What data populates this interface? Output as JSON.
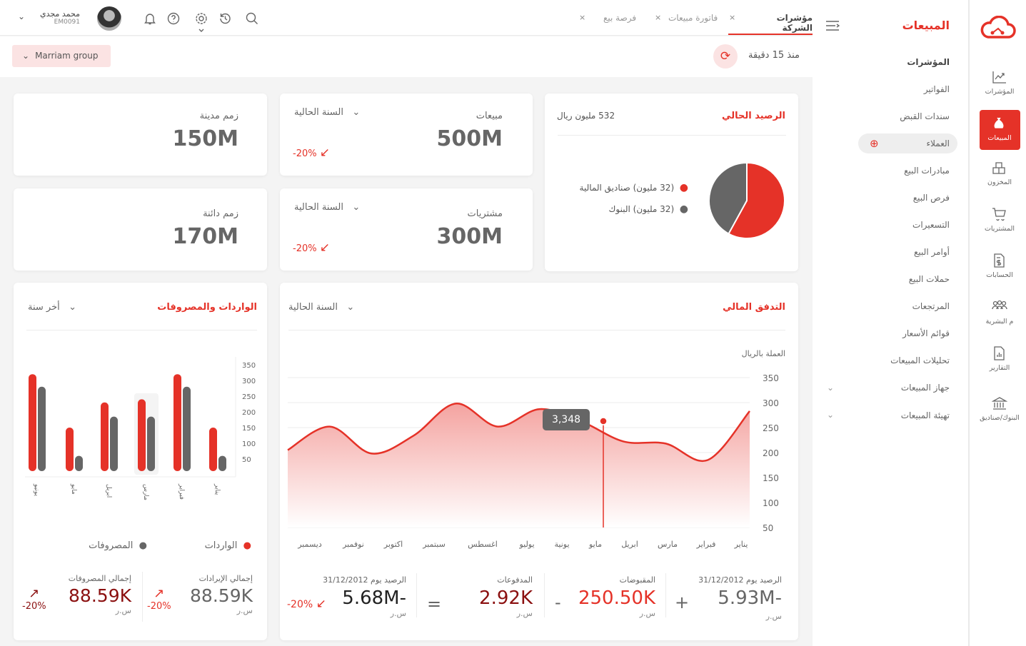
{
  "header": {
    "user_name": "محمد مجدي",
    "user_id": "EM0091",
    "tabs": [
      {
        "label": "مؤشرات الشركة",
        "active": true
      },
      {
        "label": "فاتورة مبيعات"
      },
      {
        "label": "فرصة بيع"
      }
    ],
    "company": "Marriam group",
    "updated": "منذ 15 دقيقة"
  },
  "menu": {
    "title": "المبيعات",
    "items": [
      "المؤشرات",
      "الفواتير",
      "سندات القبض",
      "العملاء",
      "مبادرات البيع",
      "فرص البيع",
      "التسعيرات",
      "أوامر البيع",
      "حملات البيع",
      "المرتجعات",
      "قوائم الأسعار",
      "تحليلات المبيعات",
      "جهاز المبيعات",
      "تهيئة المبيعات"
    ]
  },
  "rail": [
    "المؤشرات",
    "المبيعات",
    "المخزون",
    "المشتريات",
    "الحسابات",
    "م البشرية",
    "التقارير",
    "البنوك/صناديق"
  ],
  "balance": {
    "title": "الرصيد الحالي",
    "total": "532 مليون ريال",
    "legend": [
      "(32 مليون)  صناديق المالية",
      "(32 مليون) البنوك"
    ],
    "slices": [
      58,
      42
    ],
    "colors": [
      "#e53228",
      "#666666"
    ]
  },
  "kpis": {
    "sales": {
      "label": "مبيعات",
      "value": "500M",
      "period": "السنة الحالية",
      "change": "-20%"
    },
    "purchases": {
      "label": "مشتريات",
      "value": "300M",
      "period": "السنة الحالية",
      "change": "-20%"
    },
    "debtors": {
      "label": "زمم مدينة",
      "value": "150M"
    },
    "creditors": {
      "label": "زمم دائنة",
      "value": "170M"
    }
  },
  "cashflow": {
    "title": "التدفق المالي",
    "period": "السنة الحالية",
    "currency_note": "العملة بالريال",
    "tooltip": "3,348",
    "summary": {
      "open_label": "الرصيد يوم 31/12/2012",
      "open": "5.93M-",
      "plus": "+",
      "rec_label": "المقبوضات",
      "rec": "250.50K",
      "minus": "-",
      "pay_label": "المدفوعات",
      "pay": "2.92K",
      "eq": "=",
      "close_label": "الرصيد يوم 31/12/2012",
      "close": "5.68M-",
      "close_change": "-20%",
      "unit": "س.ر"
    }
  },
  "incexp": {
    "title": "الواردات والمصروفات",
    "period": "أخر سنة",
    "legend_income": "الواردات",
    "legend_expense": "المصروفات",
    "total_income_label": "إجمالي الإيرادات",
    "total_income": "88.59K",
    "total_expense_label": "إجمالي المصروفات",
    "total_expense": "88.59K",
    "change": "-20%",
    "unit": "س.ر"
  },
  "chart_data": [
    {
      "type": "line",
      "title": "التدفق المالي",
      "ylabel": "العملة بالريال",
      "categories": [
        "يناير",
        "فبراير",
        "مارس",
        "ابريل",
        "مايو",
        "يونية",
        "يوليو",
        "اغسطس",
        "سبتمبر",
        "اكتوبر",
        "نوفمبر",
        "ديسمبر"
      ],
      "values": [
        283,
        185,
        218,
        222,
        262,
        287,
        252,
        298,
        234,
        198,
        252,
        205
      ],
      "yticks": [
        350,
        300,
        250,
        200,
        150,
        100,
        50
      ],
      "ylim": [
        50,
        350
      ]
    },
    {
      "type": "bar",
      "title": "الواردات والمصروفات",
      "categories": [
        "يناير",
        "فبراير",
        "مارس",
        "ابريل",
        "مايو",
        "يونيو"
      ],
      "series": [
        {
          "name": "الواردات",
          "values": [
            150,
            320,
            240,
            230,
            150,
            320
          ],
          "color": "#e53228"
        },
        {
          "name": "المصروفات",
          "values": [
            60,
            280,
            185,
            185,
            60,
            280
          ],
          "color": "#666666"
        }
      ],
      "yticks": [
        350,
        300,
        250,
        200,
        150,
        100,
        50
      ],
      "ylim": [
        0,
        350
      ]
    }
  ]
}
